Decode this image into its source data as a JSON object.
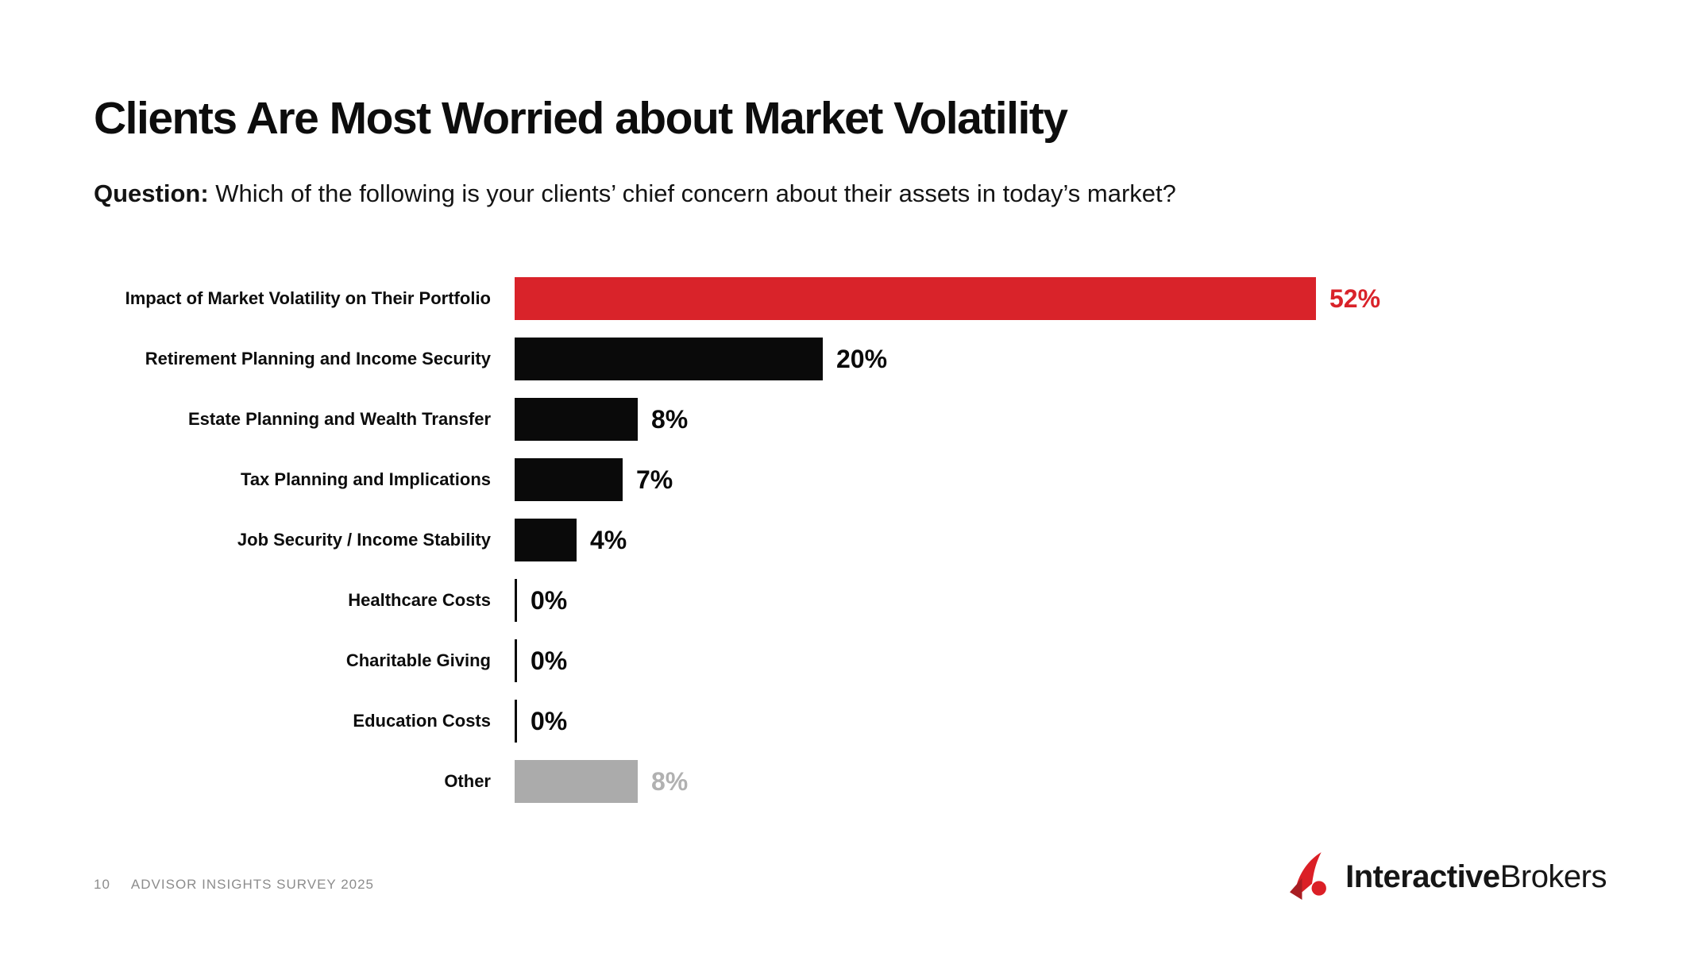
{
  "slide": {
    "title": "Clients Are Most Worried about Market Volatility",
    "question_label": "Question:",
    "question_text": " Which of the following is your clients’ chief concern about their assets in today’s market?"
  },
  "chart_data": {
    "type": "bar",
    "orientation": "horizontal",
    "categories": [
      "Impact of Market Volatility on Their Portfolio",
      "Retirement Planning and Income Security",
      "Estate Planning and Wealth Transfer",
      "Tax Planning and Implications",
      "Job Security / Income Stability",
      "Healthcare Costs",
      "Charitable Giving",
      "Education Costs",
      "Other"
    ],
    "values": [
      52,
      20,
      8,
      7,
      4,
      0,
      0,
      0,
      8
    ],
    "value_labels": [
      "52%",
      "20%",
      "8%",
      "7%",
      "4%",
      "0%",
      "0%",
      "0%",
      "8%"
    ],
    "bar_colors": [
      "#d9232a",
      "#0a0a0a",
      "#0a0a0a",
      "#0a0a0a",
      "#0a0a0a",
      "#0a0a0a",
      "#0a0a0a",
      "#0a0a0a",
      "#ababab"
    ],
    "value_label_colors": [
      "#d9232a",
      "#0a0a0a",
      "#0a0a0a",
      "#0a0a0a",
      "#0a0a0a",
      "#0a0a0a",
      "#0a0a0a",
      "#0a0a0a",
      "#b1b1b1"
    ],
    "title": "",
    "xlabel": "",
    "ylabel": "",
    "xlim": [
      0,
      60
    ],
    "grid": false,
    "legend": false,
    "data_labels": true
  },
  "footer": {
    "page_number": "10",
    "survey_label": "ADVISOR INSIGHTS SURVEY 2025"
  },
  "logo": {
    "brand_bold": "Interactive",
    "brand_regular": "Brokers",
    "mark_color": "#db1f26",
    "mark_dark_color": "#a81d22"
  }
}
